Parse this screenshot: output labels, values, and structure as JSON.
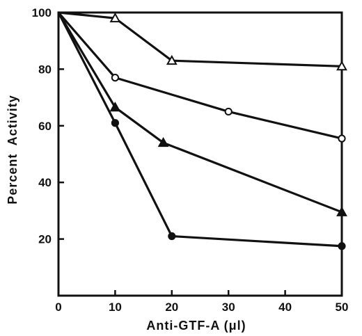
{
  "chart_data": {
    "type": "line",
    "title": "",
    "xlabel": "Anti-GTF-A (μl)",
    "ylabel": "Percent  Activity",
    "xlim": [
      0,
      50
    ],
    "ylim": [
      0,
      100
    ],
    "xticks": [
      0,
      10,
      20,
      30,
      40,
      50
    ],
    "yticks": [
      20,
      40,
      60,
      80,
      100
    ],
    "grid": false,
    "series": [
      {
        "marker": "triangle-open",
        "x": [
          0,
          10,
          20,
          50
        ],
        "y": [
          100,
          98,
          83,
          81
        ]
      },
      {
        "marker": "circle-open",
        "x": [
          0,
          10,
          30,
          50
        ],
        "y": [
          100,
          77,
          65,
          55.5
        ]
      },
      {
        "marker": "triangle-filled",
        "x": [
          0,
          10,
          18.5,
          50
        ],
        "y": [
          100,
          66.5,
          54,
          29.5
        ]
      },
      {
        "marker": "circle-filled",
        "x": [
          0,
          10,
          20,
          50
        ],
        "y": [
          100,
          61,
          21,
          17.5
        ]
      }
    ]
  },
  "colors": {
    "ink": "#111111",
    "background": "#ffffff"
  }
}
